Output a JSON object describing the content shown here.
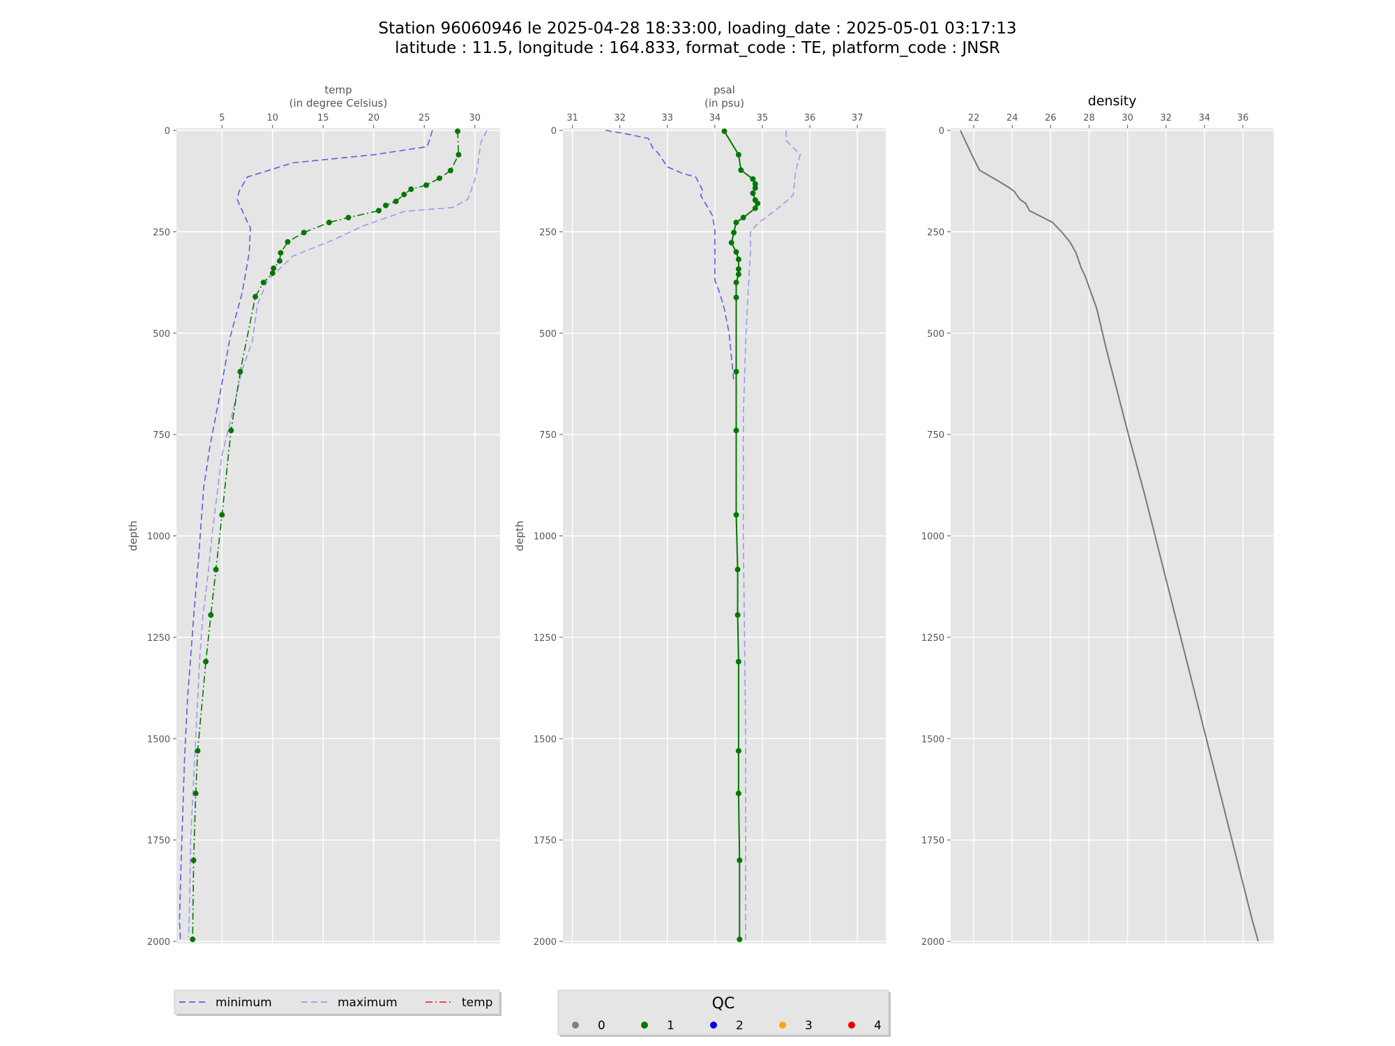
{
  "title_lines": [
    "Station 96060946 le 2025-04-28 18:33:00, loading_date : 2025-05-01 03:17:13",
    "latitude : 11.5, longitude : 164.833, format_code : TE, platform_code : JNSR"
  ],
  "chart_data": [
    {
      "type": "line",
      "title_lines": [
        "temp",
        "(in degree Celsius)"
      ],
      "ylabel": "depth",
      "xlim": [
        0.5,
        32.5
      ],
      "ylim": [
        2000,
        0
      ],
      "xticks": [
        5,
        10,
        15,
        20,
        25,
        30
      ],
      "yticks": [
        0,
        250,
        500,
        750,
        1000,
        1250,
        1500,
        1750,
        2000
      ],
      "grid": true,
      "series": [
        {
          "name": "minimum",
          "color": "#5a5ae6",
          "style": "dashed",
          "points": [
            [
              25.8,
              0
            ],
            [
              25.3,
              40
            ],
            [
              20,
              60
            ],
            [
              12,
              80
            ],
            [
              7.5,
              115
            ],
            [
              6.7,
              150
            ],
            [
              6.5,
              170
            ],
            [
              7.5,
              225
            ],
            [
              7.8,
              240
            ],
            [
              7.7,
              300
            ],
            [
              7,
              400
            ],
            [
              5.8,
              510
            ],
            [
              4.8,
              650
            ],
            [
              3.8,
              780
            ],
            [
              3.2,
              880
            ],
            [
              2.7,
              1050
            ],
            [
              2.2,
              1200
            ],
            [
              1.9,
              1300
            ],
            [
              1.6,
              1400
            ],
            [
              1.3,
              1550
            ],
            [
              1.1,
              1700
            ],
            [
              0.9,
              1850
            ],
            [
              0.8,
              1950
            ],
            [
              0.9,
              2000
            ]
          ]
        },
        {
          "name": "maximum",
          "color": "#9999ee",
          "style": "dashed",
          "points": [
            [
              31.2,
              0
            ],
            [
              30.6,
              30
            ],
            [
              30.2,
              100
            ],
            [
              29.9,
              130
            ],
            [
              29.3,
              170
            ],
            [
              27.8,
              190
            ],
            [
              23,
              200
            ],
            [
              19,
              235
            ],
            [
              16,
              270
            ],
            [
              12,
              310
            ],
            [
              9.5,
              370
            ],
            [
              8.5,
              430
            ],
            [
              8,
              520
            ],
            [
              7,
              590
            ],
            [
              6,
              700
            ],
            [
              5,
              800
            ],
            [
              4.5,
              900
            ],
            [
              4,
              1000
            ],
            [
              3.6,
              1100
            ],
            [
              3.1,
              1200
            ],
            [
              2.8,
              1300
            ],
            [
              2.5,
              1450
            ],
            [
              2.2,
              1600
            ],
            [
              1.9,
              1750
            ],
            [
              1.8,
              1900
            ],
            [
              1.7,
              1990
            ]
          ]
        },
        {
          "name": "temp",
          "color": "#007700",
          "style": "dashdot",
          "markers": true,
          "points": [
            [
              28.3,
              2
            ],
            [
              28.4,
              60
            ],
            [
              27.6,
              99
            ],
            [
              26.5,
              118
            ],
            [
              25.2,
              135
            ],
            [
              23.7,
              145
            ],
            [
              23,
              158
            ],
            [
              22.2,
              175
            ],
            [
              21.2,
              185
            ],
            [
              20.5,
              198
            ],
            [
              17.5,
              215
            ],
            [
              15.6,
              227
            ],
            [
              13.1,
              252
            ],
            [
              11.5,
              275
            ],
            [
              10.8,
              302
            ],
            [
              10.7,
              322
            ],
            [
              10.1,
              340
            ],
            [
              10,
              352
            ],
            [
              9.1,
              375
            ],
            [
              8.3,
              410
            ],
            [
              6.8,
              595
            ],
            [
              5.9,
              740
            ],
            [
              5,
              948
            ],
            [
              4.4,
              1083
            ],
            [
              3.9,
              1195
            ],
            [
              3.4,
              1310
            ],
            [
              2.6,
              1530
            ],
            [
              2.4,
              1635
            ],
            [
              2.2,
              1800
            ],
            [
              2.1,
              1995
            ]
          ]
        }
      ],
      "legend": [
        "minimum",
        "maximum",
        "temp"
      ],
      "legend_colors": [
        "#5a5ae6",
        "#9999ee",
        "#ee3333"
      ]
    },
    {
      "type": "line",
      "title_lines": [
        "psal",
        "(in psu)"
      ],
      "ylabel": "depth",
      "xlim": [
        30.8,
        37.6
      ],
      "ylim": [
        2000,
        0
      ],
      "xticks": [
        31,
        32,
        33,
        34,
        35,
        36,
        37
      ],
      "yticks": [
        0,
        250,
        500,
        750,
        1000,
        1250,
        1500,
        1750,
        2000
      ],
      "grid": true,
      "series": [
        {
          "name": "minimum",
          "color": "#5a5ae6",
          "style": "dashed",
          "points": [
            [
              31.7,
              0
            ],
            [
              32.2,
              10
            ],
            [
              32.6,
              20
            ],
            [
              32.7,
              45
            ],
            [
              32.8,
              55
            ],
            [
              33,
              90
            ],
            [
              33.3,
              105
            ],
            [
              33.6,
              115
            ],
            [
              33.75,
              150
            ],
            [
              33.7,
              160
            ],
            [
              33.8,
              180
            ],
            [
              33.95,
              210
            ],
            [
              34.0,
              245
            ],
            [
              34.0,
              290
            ],
            [
              34.0,
              370
            ],
            [
              34.1,
              400
            ],
            [
              34.2,
              440
            ],
            [
              34.3,
              500
            ],
            [
              34.4,
              620
            ]
          ]
        },
        {
          "name": "maximum",
          "color": "#9999ee",
          "style": "dashed",
          "points": [
            [
              35.5,
              0
            ],
            [
              35.5,
              25
            ],
            [
              35.8,
              60
            ],
            [
              35.7,
              100
            ],
            [
              35.65,
              160
            ],
            [
              35.3,
              195
            ],
            [
              34.9,
              230
            ],
            [
              34.75,
              250
            ],
            [
              34.75,
              300
            ],
            [
              34.7,
              400
            ],
            [
              34.65,
              520
            ],
            [
              34.6,
              700
            ],
            [
              34.6,
              1000
            ],
            [
              34.65,
              1500
            ],
            [
              34.65,
              2000
            ]
          ]
        },
        {
          "name": "psal",
          "color": "#007700",
          "style": "solid",
          "markers": true,
          "points": [
            [
              34.2,
              2
            ],
            [
              34.5,
              60
            ],
            [
              34.55,
              98
            ],
            [
              34.8,
              120
            ],
            [
              34.85,
              132
            ],
            [
              34.85,
              142
            ],
            [
              34.8,
              155
            ],
            [
              34.85,
              172
            ],
            [
              34.9,
              180
            ],
            [
              34.85,
              192
            ],
            [
              34.6,
              215
            ],
            [
              34.45,
              227
            ],
            [
              34.4,
              252
            ],
            [
              34.35,
              277
            ],
            [
              34.45,
              300
            ],
            [
              34.5,
              318
            ],
            [
              34.5,
              342
            ],
            [
              34.5,
              355
            ],
            [
              34.45,
              375
            ],
            [
              34.45,
              412
            ],
            [
              34.45,
              595
            ],
            [
              34.45,
              740
            ],
            [
              34.45,
              948
            ],
            [
              34.48,
              1083
            ],
            [
              34.48,
              1195
            ],
            [
              34.5,
              1310
            ],
            [
              34.5,
              1530
            ],
            [
              34.5,
              1635
            ],
            [
              34.52,
              1800
            ],
            [
              34.52,
              1995
            ]
          ]
        }
      ]
    },
    {
      "type": "line",
      "title_lines": [
        "density"
      ],
      "xlim": [
        20.8,
        37.6
      ],
      "ylim": [
        2000,
        0
      ],
      "xticks": [
        22,
        24,
        26,
        28,
        30,
        32,
        34,
        36
      ],
      "yticks": [
        0,
        250,
        500,
        750,
        1000,
        1250,
        1500,
        1750,
        2000
      ],
      "grid": true,
      "series": [
        {
          "name": "density",
          "color": "#777777",
          "style": "solid",
          "points": [
            [
              21.3,
              0
            ],
            [
              21.9,
              60
            ],
            [
              22.3,
              98
            ],
            [
              23.1,
              120
            ],
            [
              23.8,
              140
            ],
            [
              24.1,
              150
            ],
            [
              24.4,
              170
            ],
            [
              24.7,
              180
            ],
            [
              24.9,
              198
            ],
            [
              25.6,
              215
            ],
            [
              26.1,
              227
            ],
            [
              26.6,
              252
            ],
            [
              27,
              275
            ],
            [
              27.3,
              300
            ],
            [
              27.6,
              340
            ],
            [
              27.8,
              360
            ],
            [
              28.1,
              400
            ],
            [
              28.4,
              440
            ],
            [
              28.9,
              540
            ],
            [
              29.5,
              650
            ],
            [
              30.1,
              760
            ],
            [
              30.9,
              900
            ],
            [
              31.7,
              1050
            ],
            [
              32.5,
              1200
            ],
            [
              33.3,
              1350
            ],
            [
              34.1,
              1500
            ],
            [
              34.9,
              1650
            ],
            [
              35.7,
              1800
            ],
            [
              36.5,
              1950
            ],
            [
              36.8,
              2000
            ]
          ]
        }
      ]
    }
  ],
  "qc_legend": {
    "title": "QC",
    "items": [
      {
        "label": "0",
        "color": "#808080"
      },
      {
        "label": "1",
        "color": "#007700"
      },
      {
        "label": "2",
        "color": "#0000ee"
      },
      {
        "label": "3",
        "color": "#ffa500"
      },
      {
        "label": "4",
        "color": "#ee0000"
      }
    ]
  }
}
